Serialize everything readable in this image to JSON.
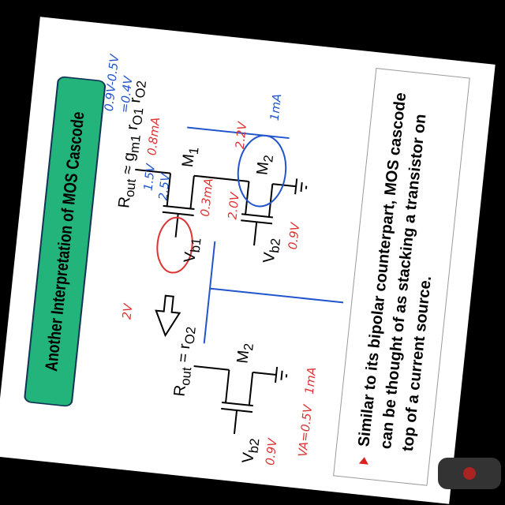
{
  "header": {
    "title": "Another Interpretation of MOS Cascode"
  },
  "circuit_left": {
    "rout": "R",
    "rout_sub": "out",
    "rout_eq": " = r",
    "rout_eq_sub": "O2",
    "m": "M",
    "m_sub": "2",
    "vb": "V",
    "vb_sub": "b2"
  },
  "circuit_right": {
    "rout": "R",
    "rout_sub": "out",
    "rout_eq": " ≈ g",
    "rout_eq_sub": "m1",
    "rout_tail": " r",
    "rout_tail_sub": "O1",
    "rout_tail2": " r",
    "rout_tail2_sub": "O2",
    "m1": "M",
    "m1_sub": "1",
    "m2": "M",
    "m2_sub": "2",
    "vb1": "V",
    "vb1_sub": "b1",
    "vb2": "V",
    "vb2_sub": "b2"
  },
  "annotations": [
    "0.9V",
    "VA=0.5V",
    "1mA",
    "2V",
    "2.5V",
    "1.5V",
    "0.3mA",
    "0.8mA",
    "2.2V",
    "1mA",
    "0.9V-0.5V",
    "=0.4V",
    "2.0V",
    "0.9V"
  ],
  "bullet": {
    "text": "Similar to its bipolar counterpart, MOS cascode can be thought of as stacking a transistor on top of a current source."
  }
}
